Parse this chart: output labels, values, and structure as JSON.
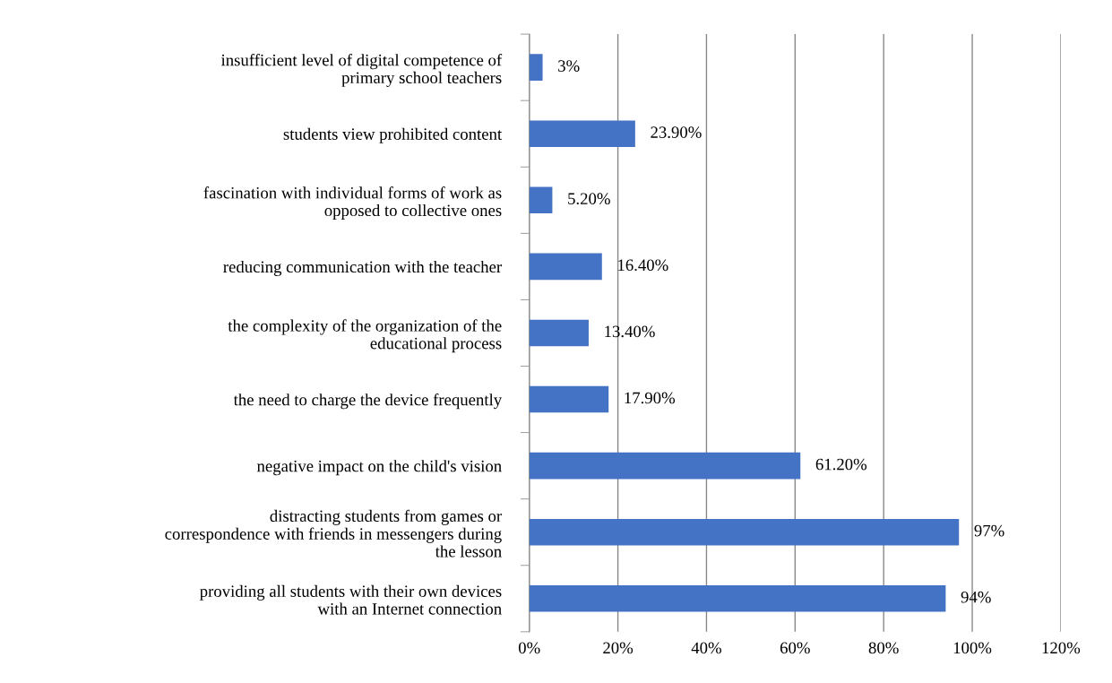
{
  "chart_data": {
    "type": "bar",
    "orientation": "horizontal",
    "categories": [
      "insufficient level of digital competence of primary school teachers",
      "students view prohibited content",
      "fascination with individual forms of work as opposed to collective ones",
      "reducing communication with the teacher",
      "the complexity of the organization of the educational process",
      "the need to charge the device frequently",
      "negative impact on the child's vision",
      "distracting students from games or correspondence with friends in messengers during the lesson",
      "providing all students with their own devices with an Internet connection"
    ],
    "values": [
      3,
      23.9,
      5.2,
      16.4,
      13.4,
      17.9,
      61.2,
      97,
      94
    ],
    "value_labels": [
      "3%",
      "23.90%",
      "5.20%",
      "16.40%",
      "13.40%",
      "17.90%",
      "61.20%",
      "97%",
      "94%"
    ],
    "color": "#4472c4",
    "xlim": [
      0,
      120
    ],
    "xticks": [
      {
        "value": 0,
        "label": "0%"
      },
      {
        "value": 20,
        "label": "20%"
      },
      {
        "value": 40,
        "label": "40%"
      },
      {
        "value": 60,
        "label": "60%"
      },
      {
        "value": 80,
        "label": "80%"
      },
      {
        "value": 100,
        "label": "100%"
      },
      {
        "value": 120,
        "label": "120%"
      }
    ],
    "grid": "x"
  }
}
